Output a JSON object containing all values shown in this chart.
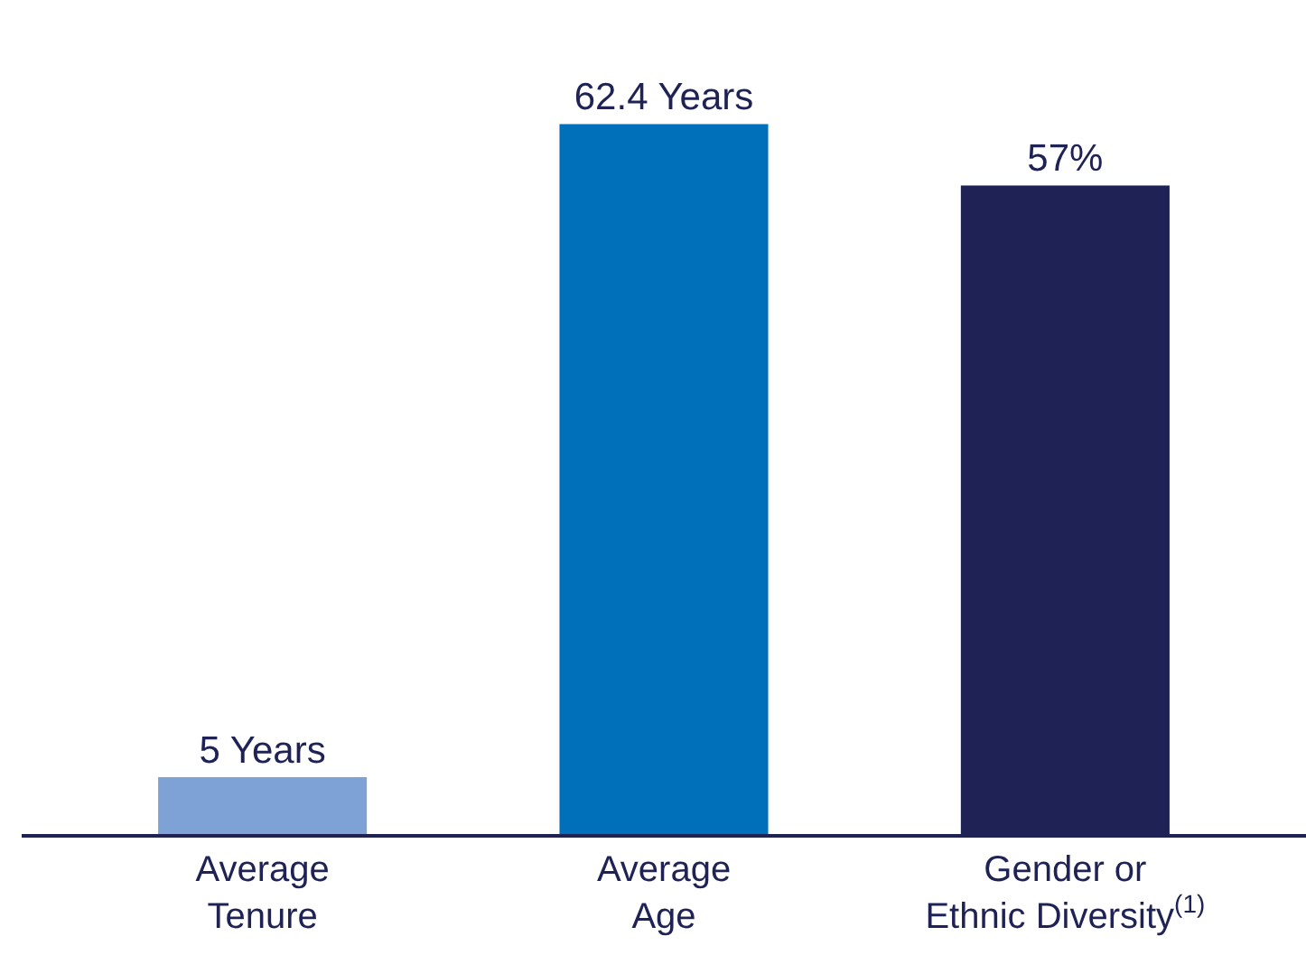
{
  "chart_data": {
    "type": "bar",
    "categories": [
      "Average\nTenure",
      "Average\nAge",
      "Gender or\nEthnic Diversity$^{(1)}$"
    ],
    "values": [
      5,
      62.4,
      57
    ],
    "colors": [
      "#7fa2d6",
      "#0070ba",
      "#1f2255"
    ],
    "value_labels": [
      "5 Years",
      "62.4 Years",
      "57%"
    ]
  }
}
